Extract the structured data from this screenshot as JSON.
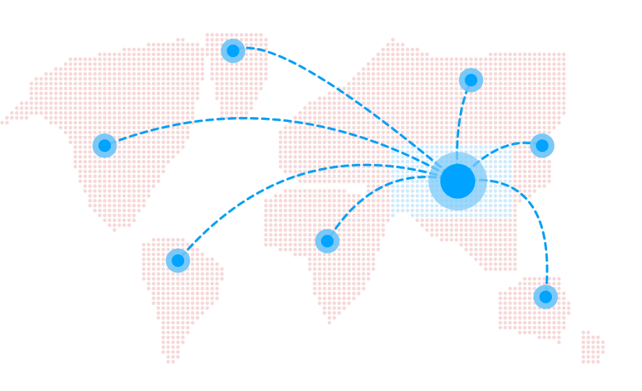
{
  "map": {
    "style": "dotted-world-map",
    "colors": {
      "land_dot": "#f6d8d8",
      "highlight_dot": "#cfeafc",
      "node_halo": "#6cc4f8",
      "node_core": "#00a3ff",
      "hub_halo": "#7fcbf8",
      "connection_line": "#0aa0f5"
    },
    "hub": {
      "icon": "hub-node-icon"
    },
    "nodes": [
      {
        "icon": "node-greenland-icon"
      },
      {
        "icon": "node-russia-icon"
      },
      {
        "icon": "node-north-america-icon"
      },
      {
        "icon": "node-japan-icon"
      },
      {
        "icon": "node-south-america-icon"
      },
      {
        "icon": "node-africa-icon"
      },
      {
        "icon": "node-australia-icon"
      }
    ]
  }
}
